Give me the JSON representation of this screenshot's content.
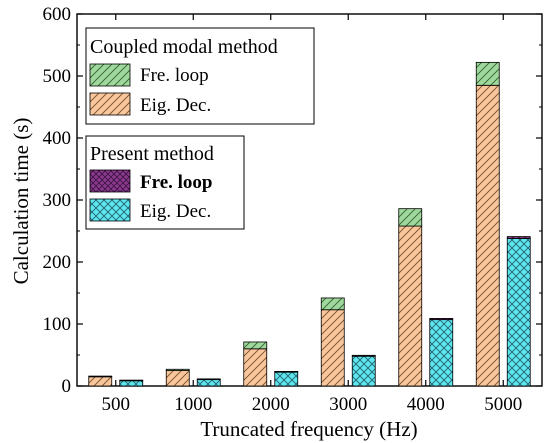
{
  "chart_data": {
    "type": "bar",
    "subtype": "grouped-stacked",
    "xlabel": "Truncated frequency (Hz)",
    "ylabel": "Calculation time (s)",
    "ylim": [
      0,
      600
    ],
    "yticks": [
      0,
      100,
      200,
      300,
      400,
      500,
      600
    ],
    "categories": [
      "500",
      "1000",
      "2000",
      "3000",
      "4000",
      "5000"
    ],
    "groups": [
      {
        "title": "Coupled modal method",
        "stack": [
          {
            "name": "Eig. Dec.",
            "pattern": "hatch-diagonal",
            "color": "#f9c59a",
            "values": [
              15,
              25,
              60,
              123,
              258,
              485
            ]
          },
          {
            "name": "Fre. loop",
            "pattern": "hatch-diagonal",
            "color": "#9fd89c",
            "values": [
              1,
              2,
              11,
              19,
              28,
              37
            ]
          }
        ]
      },
      {
        "title": "Present method",
        "stack": [
          {
            "name": "Eig. Dec.",
            "pattern": "crosshatch",
            "color": "#5ee6ee",
            "values": [
              9,
              11,
              23,
              48,
              107,
              238
            ]
          },
          {
            "name": "Fre. loop",
            "pattern": "crosshatch",
            "color": "#8a3a8e",
            "values": [
              0.5,
              0.5,
              0.5,
              1.5,
              2,
              3
            ]
          }
        ]
      }
    ],
    "legend": {
      "placement": "top-left",
      "boxes": [
        {
          "title": "Coupled modal method",
          "entries": [
            {
              "label": "Fre. loop",
              "bold": false
            },
            {
              "label": "Eig. Dec.",
              "bold": false
            }
          ]
        },
        {
          "title": "Present method",
          "entries": [
            {
              "label": "Fre. loop",
              "bold": true
            },
            {
              "label": "Eig. Dec.",
              "bold": false
            }
          ]
        }
      ]
    },
    "grid": false,
    "colors": {
      "coupled_fre": "#9fd89c",
      "coupled_eig": "#f9c59a",
      "present_fre": "#8a3a8e",
      "present_eig": "#5ee6ee"
    }
  }
}
